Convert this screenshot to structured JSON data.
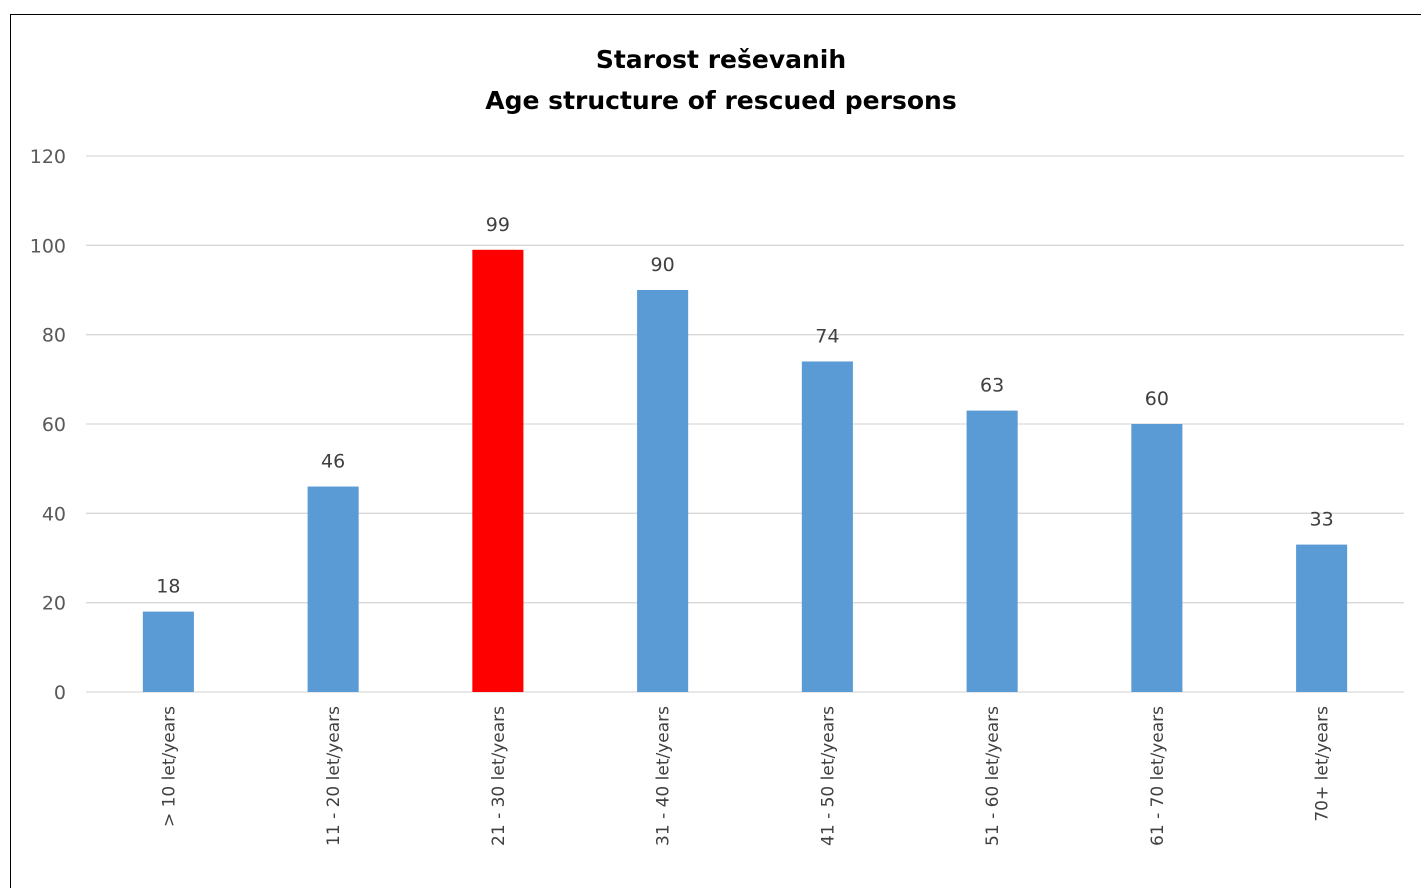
{
  "chart_data": {
    "type": "bar",
    "title": "Starost reševanih",
    "subtitle": "Age structure of rescued persons",
    "categories": [
      "> 10 let/years",
      "11 - 20 let/years",
      "21 - 30 let/years",
      "31 - 40 let/years",
      "41 - 50 let/years",
      "51 - 60 let/years",
      "61 - 70 let/years",
      "70+ let/years"
    ],
    "values": [
      18,
      46,
      99,
      90,
      74,
      63,
      60,
      33
    ],
    "ylim": [
      0,
      120
    ],
    "yticks": [
      0,
      20,
      40,
      60,
      80,
      100,
      120
    ],
    "grid": true,
    "legend": "none",
    "colors": {
      "bar": "#5b9bd5",
      "highlight": "#ff0000",
      "grid": "#d9d9d9"
    },
    "highlight_index": 2
  }
}
